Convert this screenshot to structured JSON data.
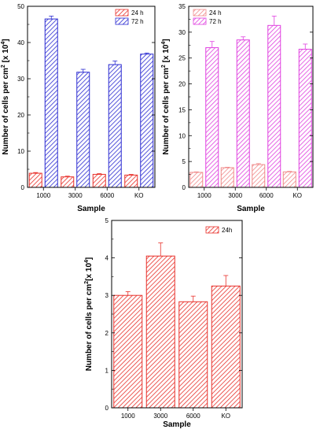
{
  "chart_data": [
    {
      "type": "bar",
      "categories": [
        "1000",
        "3000",
        "6000",
        "KO"
      ],
      "series": [
        {
          "name": "24 h",
          "values": [
            3.9,
            2.9,
            3.6,
            3.4
          ],
          "errors": [
            0.2,
            0.2,
            0.2,
            0.2
          ],
          "color": "#e8302a"
        },
        {
          "name": "72 h",
          "values": [
            46.5,
            31.8,
            33.9,
            36.8
          ],
          "errors": [
            0.8,
            0.8,
            1.0,
            0.3
          ],
          "color": "#2c2cd2"
        }
      ],
      "xlabel": "Sample",
      "ylabel_prefix": "Number of cells per cm",
      "ylabel_suffix": " [x 10",
      "ylabel_end": "]",
      "ylabel_sup1": "2",
      "ylabel_sup2": "4",
      "ylim": [
        0,
        50
      ],
      "yticks": [
        "0",
        "10",
        "20",
        "30",
        "40",
        "50"
      ],
      "ytick_values": [
        0,
        10,
        20,
        30,
        40,
        50
      ],
      "legend_position": "top-right"
    },
    {
      "type": "bar",
      "categories": [
        "1000",
        "3000",
        "6000",
        "KO"
      ],
      "series": [
        {
          "name": "24 h",
          "values": [
            2.9,
            3.8,
            4.4,
            3.0
          ],
          "errors": [
            0.1,
            0.1,
            0.2,
            0.1
          ],
          "color": "#f08a8a"
        },
        {
          "name": "72 h",
          "values": [
            27.0,
            28.5,
            31.3,
            26.7
          ],
          "errors": [
            1.2,
            0.6,
            1.8,
            1.0
          ],
          "color": "#e040e0"
        }
      ],
      "xlabel": "Sample",
      "ylabel_prefix": "Number of cells per cm",
      "ylabel_suffix": " [x 10",
      "ylabel_end": "]",
      "ylabel_sup1": "2",
      "ylabel_sup2": "4",
      "ylim": [
        0,
        35
      ],
      "yticks": [
        "0",
        "5",
        "10",
        "15",
        "20",
        "25",
        "30",
        "35"
      ],
      "ytick_values": [
        0,
        5,
        10,
        15,
        20,
        25,
        30,
        35
      ],
      "legend_position": "top-left"
    },
    {
      "type": "bar",
      "categories": [
        "1000",
        "3000",
        "6000",
        "KO"
      ],
      "series": [
        {
          "name": "24h",
          "values": [
            3.0,
            4.05,
            2.83,
            3.25
          ],
          "errors": [
            0.1,
            0.35,
            0.15,
            0.28
          ],
          "color": "#e8302a"
        }
      ],
      "xlabel": "Sample",
      "ylabel_prefix": "Number of cells per cm",
      "ylabel_suffix": "[x 10",
      "ylabel_end": "]",
      "ylabel_sup1": "2",
      "ylabel_sup2": "4",
      "ylim": [
        0,
        5
      ],
      "yticks": [
        "0",
        "1",
        "2",
        "3",
        "4",
        "5"
      ],
      "ytick_values": [
        0,
        1,
        2,
        3,
        4,
        5
      ],
      "legend_position": "top-right"
    }
  ]
}
